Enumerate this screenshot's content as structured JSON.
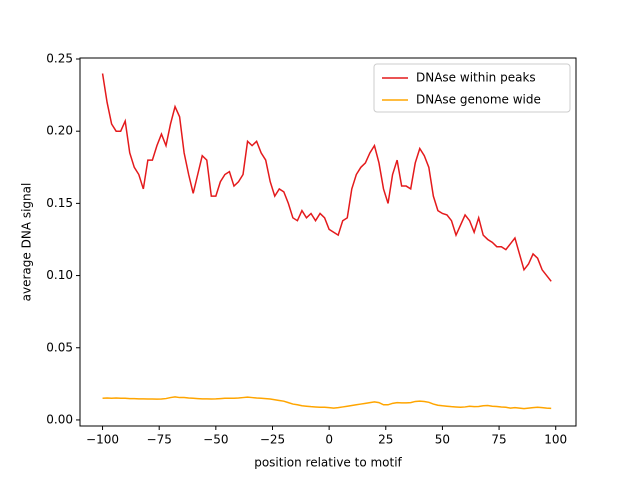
{
  "chart_data": {
    "type": "line",
    "xlabel": "position relative to motif",
    "ylabel": "average DNA signal",
    "x": [
      -100,
      -98,
      -96,
      -94,
      -92,
      -90,
      -88,
      -86,
      -84,
      -82,
      -80,
      -78,
      -76,
      -74,
      -72,
      -70,
      -68,
      -66,
      -64,
      -62,
      -60,
      -58,
      -56,
      -54,
      -52,
      -50,
      -48,
      -46,
      -44,
      -42,
      -40,
      -38,
      -36,
      -34,
      -32,
      -30,
      -28,
      -26,
      -24,
      -22,
      -20,
      -18,
      -16,
      -14,
      -12,
      -10,
      -8,
      -6,
      -4,
      -2,
      0,
      2,
      4,
      6,
      8,
      10,
      12,
      14,
      16,
      18,
      20,
      22,
      24,
      26,
      28,
      30,
      32,
      34,
      36,
      38,
      40,
      42,
      44,
      46,
      48,
      50,
      52,
      54,
      56,
      58,
      60,
      62,
      64,
      66,
      68,
      70,
      72,
      74,
      76,
      78,
      80,
      82,
      84,
      86,
      88,
      90,
      92,
      94,
      96,
      98
    ],
    "series": [
      {
        "name": "DNAse within peaks",
        "color": "#e41a1c",
        "values": [
          0.24,
          0.22,
          0.205,
          0.2,
          0.2,
          0.207,
          0.185,
          0.175,
          0.17,
          0.16,
          0.18,
          0.18,
          0.19,
          0.198,
          0.19,
          0.205,
          0.217,
          0.21,
          0.185,
          0.17,
          0.157,
          0.17,
          0.183,
          0.18,
          0.155,
          0.155,
          0.165,
          0.17,
          0.172,
          0.162,
          0.165,
          0.17,
          0.193,
          0.19,
          0.193,
          0.185,
          0.18,
          0.165,
          0.155,
          0.16,
          0.158,
          0.15,
          0.14,
          0.138,
          0.145,
          0.14,
          0.143,
          0.138,
          0.143,
          0.14,
          0.132,
          0.13,
          0.128,
          0.138,
          0.14,
          0.16,
          0.17,
          0.175,
          0.178,
          0.185,
          0.19,
          0.178,
          0.16,
          0.15,
          0.17,
          0.18,
          0.162,
          0.162,
          0.16,
          0.178,
          0.188,
          0.183,
          0.175,
          0.155,
          0.145,
          0.143,
          0.142,
          0.138,
          0.128,
          0.135,
          0.142,
          0.138,
          0.13,
          0.14,
          0.128,
          0.125,
          0.123,
          0.12,
          0.12,
          0.118,
          0.122,
          0.126,
          0.115,
          0.104,
          0.108,
          0.115,
          0.112,
          0.104,
          0.1,
          0.096
        ]
      },
      {
        "name": "DNAse genome wide",
        "color": "#ffa500",
        "values": [
          0.015,
          0.0152,
          0.015,
          0.0152,
          0.015,
          0.015,
          0.0148,
          0.0148,
          0.0146,
          0.0146,
          0.0145,
          0.0145,
          0.0144,
          0.0145,
          0.0148,
          0.0155,
          0.016,
          0.0155,
          0.0155,
          0.0152,
          0.015,
          0.0148,
          0.0146,
          0.0146,
          0.0145,
          0.0146,
          0.0148,
          0.015,
          0.015,
          0.015,
          0.0152,
          0.0155,
          0.0158,
          0.0155,
          0.0152,
          0.015,
          0.0148,
          0.0145,
          0.014,
          0.0135,
          0.013,
          0.012,
          0.011,
          0.0105,
          0.0098,
          0.0095,
          0.0092,
          0.009,
          0.0088,
          0.0088,
          0.0085,
          0.0082,
          0.0085,
          0.009,
          0.0095,
          0.01,
          0.0105,
          0.011,
          0.0115,
          0.012,
          0.0125,
          0.012,
          0.0105,
          0.0105,
          0.0115,
          0.012,
          0.0118,
          0.0118,
          0.012,
          0.0128,
          0.013,
          0.0128,
          0.0122,
          0.011,
          0.0102,
          0.0098,
          0.0095,
          0.0092,
          0.009,
          0.0088,
          0.009,
          0.0095,
          0.0092,
          0.0093,
          0.0098,
          0.01,
          0.0095,
          0.0093,
          0.009,
          0.0088,
          0.0082,
          0.0085,
          0.0082,
          0.0078,
          0.0082,
          0.0085,
          0.0088,
          0.0085,
          0.0082,
          0.008
        ]
      }
    ],
    "xlim": [
      -109.95,
      108.95
    ],
    "xticks": [
      {
        "value": -100,
        "label": "−100"
      },
      {
        "value": -75,
        "label": "−75"
      },
      {
        "value": -50,
        "label": "−50"
      },
      {
        "value": -25,
        "label": "−25"
      },
      0,
      25,
      50,
      75,
      100
    ],
    "ylim": [
      -0.0042,
      0.2507
    ],
    "yticks": [
      {
        "value": 0,
        "label": "0.00"
      },
      {
        "value": 0.05,
        "label": "0.05"
      },
      {
        "value": 0.1,
        "label": "0.10"
      },
      {
        "value": 0.15,
        "label": "0.15"
      },
      {
        "value": 0.2,
        "label": "0.20"
      },
      {
        "value": 0.25,
        "label": "0.25"
      }
    ],
    "legend": "upper right"
  }
}
